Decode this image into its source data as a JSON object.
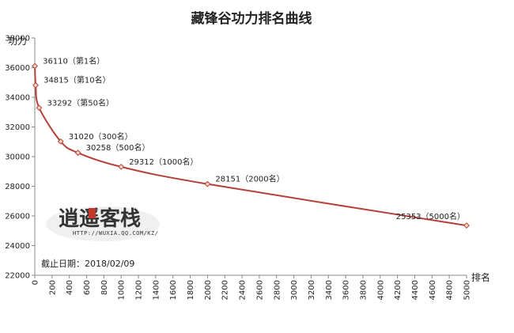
{
  "chart_data": {
    "type": "line",
    "title": "藏锋谷功力排名曲线",
    "xlabel": "排名",
    "ylabel": "功力",
    "xlim": [
      0,
      5000
    ],
    "ylim": [
      22000,
      38000
    ],
    "x_ticks": [
      0,
      200,
      400,
      600,
      800,
      1000,
      1200,
      1400,
      1600,
      1800,
      2000,
      2200,
      2400,
      2600,
      2800,
      3000,
      3200,
      3400,
      3600,
      3800,
      4000,
      4200,
      4400,
      4600,
      4800,
      5000
    ],
    "y_ticks": [
      22000,
      24000,
      26000,
      28000,
      30000,
      32000,
      34000,
      36000,
      38000
    ],
    "grid": false,
    "legend": "none",
    "series": [
      {
        "color": "#b5403a",
        "points": [
          {
            "x": 1,
            "y": 36110,
            "label": "36110（第1名）"
          },
          {
            "x": 10,
            "y": 34815,
            "label": "34815（第10名）"
          },
          {
            "x": 50,
            "y": 33292,
            "label": "33292（第50名）"
          },
          {
            "x": 300,
            "y": 31020,
            "label": "31020（300名）"
          },
          {
            "x": 500,
            "y": 30258,
            "label": "30258（500名）"
          },
          {
            "x": 1000,
            "y": 29312,
            "label": "29312（1000名）"
          },
          {
            "x": 2000,
            "y": 28151,
            "label": "28151（2000名）"
          },
          {
            "x": 5000,
            "y": 25353,
            "label": "25353（5000名）"
          }
        ]
      }
    ],
    "annotation": "截止日期：2018/02/09",
    "watermark": {
      "main": "逍遥客栈",
      "url": "HTTP://WUXIA.QQ.COM/KZ/",
      "seal_color": "#c0392b"
    }
  }
}
